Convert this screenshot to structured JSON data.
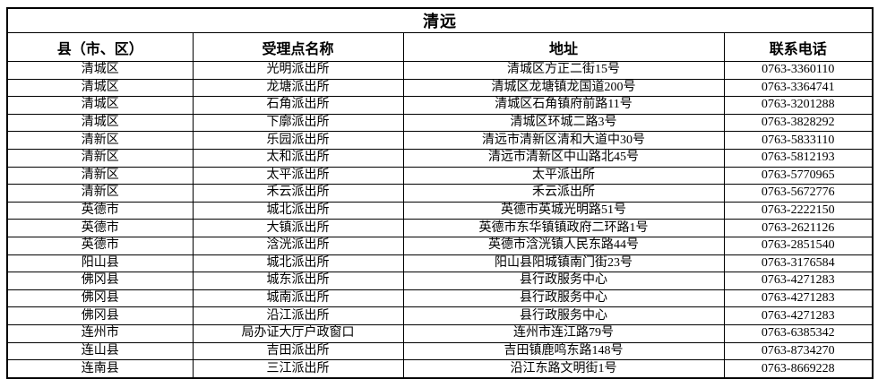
{
  "title": "清远",
  "colors": {
    "background": "#ffffff",
    "border": "#000000",
    "text": "#000000"
  },
  "table": {
    "columns": [
      "县（市、区）",
      "受理点名称",
      "地址",
      "联系电话"
    ],
    "rows": [
      [
        "清城区",
        "光明派出所",
        "清城区方正二街15号",
        "0763-3360110"
      ],
      [
        "清城区",
        "龙塘派出所",
        "清城区龙塘镇龙国道200号",
        "0763-3364741"
      ],
      [
        "清城区",
        "石角派出所",
        "清城区石角镇府前路11号",
        "0763-3201288"
      ],
      [
        "清城区",
        "下廓派出所",
        "清城区环城二路3号",
        "0763-3828292"
      ],
      [
        "清新区",
        "乐园派出所",
        "清远市清新区清和大道中30号",
        "0763-5833110"
      ],
      [
        "清新区",
        "太和派出所",
        "清远市清新区中山路北45号",
        "0763-5812193"
      ],
      [
        "清新区",
        "太平派出所",
        "太平派出所",
        "0763-5770965"
      ],
      [
        "清新区",
        "禾云派出所",
        "禾云派出所",
        "0763-5672776"
      ],
      [
        "英德市",
        "城北派出所",
        "英德市英城光明路51号",
        "0763-2222150"
      ],
      [
        "英德市",
        "大镇派出所",
        "英德市东华镇镇政府二环路1号",
        "0763-2621126"
      ],
      [
        "英德市",
        "浛洸派出所",
        "英德市浛洸镇人民东路44号",
        "0763-2851540"
      ],
      [
        "阳山县",
        "城北派出所",
        "阳山县阳城镇南门街23号",
        "0763-3176584"
      ],
      [
        "佛冈县",
        "城东派出所",
        "县行政服务中心",
        "0763-4271283"
      ],
      [
        "佛冈县",
        "城南派出所",
        "县行政服务中心",
        "0763-4271283"
      ],
      [
        "佛冈县",
        "沿江派出所",
        "县行政服务中心",
        "0763-4271283"
      ],
      [
        "连州市",
        "局办证大厅户政窗口",
        "连州市连江路79号",
        "0763-6385342"
      ],
      [
        "连山县",
        "吉田派出所",
        "吉田镇鹿鸣东路148号",
        "0763-8734270"
      ],
      [
        "连南县",
        "三江派出所",
        "沿江东路文明街1号",
        "0763-8669228"
      ]
    ]
  }
}
